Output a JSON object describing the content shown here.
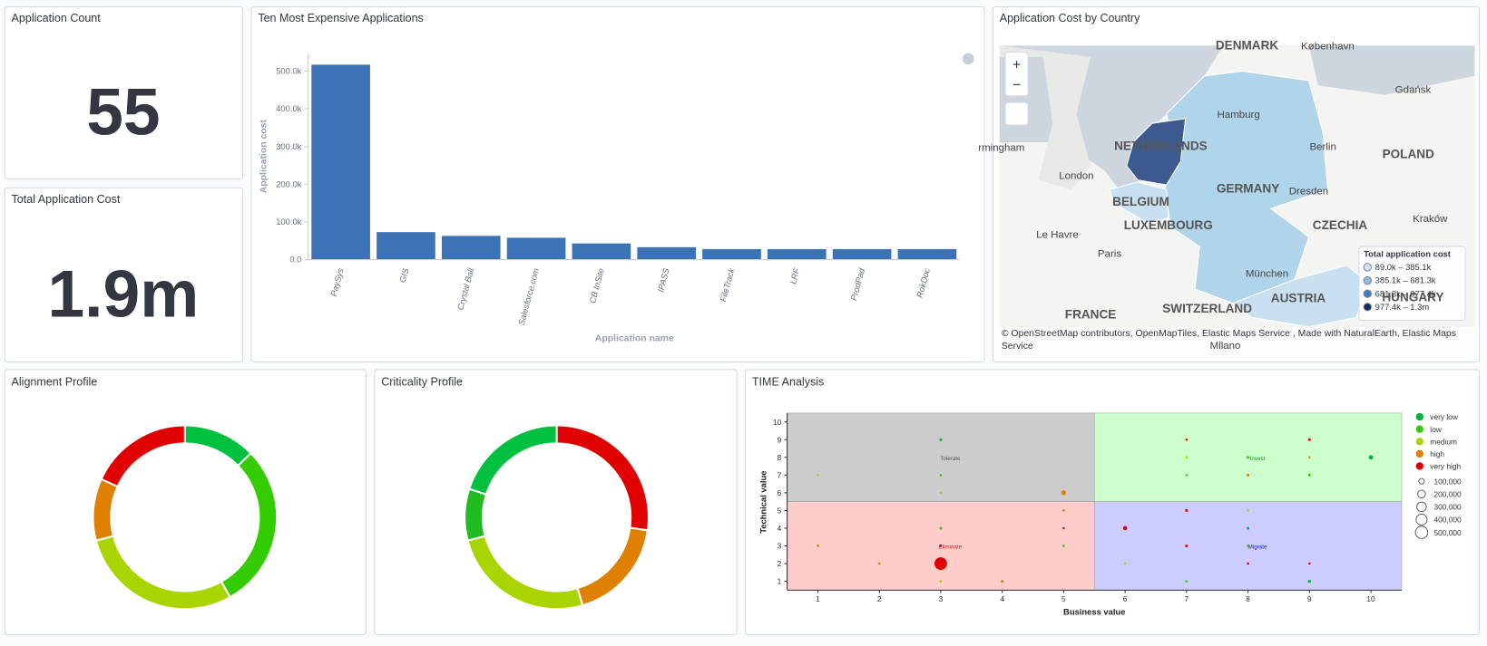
{
  "metrics": [
    {
      "title": "Application Count",
      "value": "55"
    },
    {
      "title": "Total Application Cost",
      "value": "1.9m"
    }
  ],
  "chart_data": [
    {
      "type": "bar",
      "title": "Ten Most Expensive Applications",
      "x_label": "Application name",
      "y_label": "Application cost",
      "categories": [
        "PaySys",
        "GIS",
        "Crystal Ball",
        "Salesforce.com",
        "CB InSite",
        "IPASS",
        "FileTrack",
        "LRF",
        "ProdPad",
        "RokDoc"
      ],
      "values": [
        517000,
        73000,
        63000,
        58000,
        43000,
        33000,
        28000,
        28000,
        28000,
        28000
      ],
      "color": "#3b73b4",
      "ylim": [
        0,
        545000
      ],
      "yticks": [
        {
          "value": 0,
          "label": "0.0"
        },
        {
          "value": 100000,
          "label": "100.0k"
        },
        {
          "value": 200000,
          "label": "200.0k"
        },
        {
          "value": 300000,
          "label": "300.0k"
        },
        {
          "value": 400000,
          "label": "400.0k"
        },
        {
          "value": 500000,
          "label": "500.0k"
        }
      ]
    },
    {
      "type": "donut",
      "title": "Alignment Profile",
      "values": [
        7,
        16,
        16,
        6,
        10
      ],
      "colors": [
        "#00c13f",
        "#33cc00",
        "#aad400",
        "#e08000",
        "#e00000"
      ]
    },
    {
      "type": "donut",
      "title": "Criticality Profile",
      "values": [
        15,
        10,
        14,
        5,
        11
      ],
      "colors": [
        "#e00000",
        "#e08000",
        "#aad400",
        "#22bb22",
        "#00c13f"
      ]
    },
    {
      "type": "scatter",
      "title": "TIME Analysis",
      "x_label": "Business value",
      "y_label": "Technical value",
      "xlim": [
        0.5,
        10.5
      ],
      "ylim": [
        0.5,
        10.5
      ],
      "xticks": [
        1,
        2,
        3,
        4,
        5,
        6,
        7,
        8,
        9,
        10
      ],
      "yticks": [
        1,
        2,
        3,
        4,
        5,
        6,
        7,
        8,
        9,
        10
      ],
      "regions": [
        {
          "label": "Tolerate",
          "color": "#cccccc",
          "text_color": "#555555",
          "x": [
            0.5,
            5.5
          ],
          "y": [
            5.5,
            10.5
          ]
        },
        {
          "label": "Invest",
          "color": "#ccffcc",
          "text_color": "#228822",
          "x": [
            5.5,
            10.5
          ],
          "y": [
            5.5,
            10.5
          ]
        },
        {
          "label": "Eliminate",
          "color": "#ffcccc",
          "text_color": "#cc2222",
          "x": [
            0.5,
            5.5
          ],
          "y": [
            0.5,
            5.5
          ]
        },
        {
          "label": "Migrate",
          "color": "#ccccff",
          "text_color": "#2222aa",
          "x": [
            5.5,
            10.5
          ],
          "y": [
            0.5,
            5.5
          ]
        }
      ],
      "series": [
        {
          "name": "very low",
          "color": "#00b341",
          "x": [
            3,
            8,
            9,
            10
          ],
          "values": [
            9,
            4,
            1,
            8
          ],
          "sizes": [
            25000,
            25000,
            30000,
            63000
          ]
        },
        {
          "name": "low",
          "color": "#33cc00",
          "x": [
            3,
            3,
            5,
            7,
            7,
            8,
            8,
            9
          ],
          "values": [
            7,
            4,
            3,
            7,
            1,
            8,
            3,
            7
          ],
          "sizes": [
            20000,
            25000,
            20000,
            15000,
            15000,
            25000,
            20000,
            25000
          ]
        },
        {
          "name": "medium",
          "color": "#aad400",
          "x": [
            1,
            3,
            3,
            6,
            7,
            8
          ],
          "values": [
            7,
            6,
            1,
            2,
            8,
            5
          ],
          "sizes": [
            15000,
            15000,
            20000,
            15000,
            20000,
            15000
          ]
        },
        {
          "name": "high",
          "color": "#e08000",
          "x": [
            5,
            1,
            2,
            4,
            5,
            8,
            9
          ],
          "values": [
            6,
            3,
            2,
            1,
            5,
            7,
            8
          ],
          "sizes": [
            73000,
            20000,
            20000,
            25000,
            20000,
            25000,
            15000
          ]
        },
        {
          "name": "very high",
          "color": "#e00000",
          "x": [
            3,
            3,
            5,
            6,
            7,
            7,
            7,
            8,
            9,
            9
          ],
          "values": [
            3,
            2,
            4,
            4,
            9,
            5,
            3,
            2,
            9,
            2
          ],
          "sizes": [
            20000,
            517000,
            15000,
            58000,
            15000,
            25000,
            25000,
            15000,
            25000,
            15000
          ]
        }
      ],
      "size_legend": [
        {
          "value": 100000,
          "label": "100,000"
        },
        {
          "value": 200000,
          "label": "200,000"
        },
        {
          "value": 300000,
          "label": "300,000"
        },
        {
          "value": 400000,
          "label": "400,000"
        },
        {
          "value": 500000,
          "label": "500,000"
        }
      ]
    }
  ],
  "map": {
    "title": "Application Cost by Country",
    "controls": [
      "+",
      "−"
    ],
    "labels": [
      "DENMARK",
      "København",
      "Gdańsk",
      "Hamburg",
      "Berlin",
      "POLAND",
      "rmingham",
      "NETHERLANDS",
      "London",
      "GERMANY",
      "Dresden",
      "BELGIUM",
      "LUXEMBOURG",
      "CZECHIA",
      "Kraków",
      "Le Havre",
      "Paris",
      "München",
      "FRANCE",
      "SWITZERLAND",
      "AUSTRIA",
      "HUNGARY",
      "Milano"
    ],
    "legend_title": "Total application cost",
    "legend": [
      {
        "label": "89.0k – 385.1k",
        "color": "#cfe3f2"
      },
      {
        "label": "385.1k – 681.3k",
        "color": "#8fbde0"
      },
      {
        "label": "681.3k – 977.4k",
        "color": "#3d7fc4"
      },
      {
        "label": "977.4k – 1.3m",
        "color": "#102a5c"
      }
    ],
    "attribution": "© OpenStreetMap contributors, OpenMapTiles, Elastic Maps Service , Made with NaturalEarth, Elastic Maps Service"
  }
}
